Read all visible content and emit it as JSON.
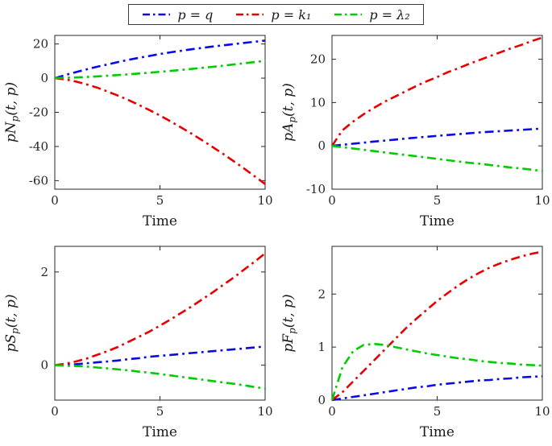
{
  "legend": {
    "items": [
      {
        "label": "p = q",
        "color": "#0a0ae6"
      },
      {
        "label": "p = k₁",
        "color": "#e60000"
      },
      {
        "label": "p = λ₂",
        "color": "#00cc00"
      }
    ]
  },
  "chart_data": [
    {
      "type": "line",
      "title": "",
      "xlabel": "Time",
      "ylabel": "pN_p(t, p)",
      "xlim": [
        0,
        10
      ],
      "ylim": [
        -65,
        25
      ],
      "xticks": [
        0,
        5,
        10
      ],
      "yticks": [
        20,
        0,
        -20,
        -40,
        -60
      ],
      "grid": false,
      "x": [
        0,
        0.5,
        1,
        1.5,
        2,
        2.5,
        3,
        3.5,
        4,
        4.5,
        5,
        5.5,
        6,
        6.5,
        7,
        7.5,
        8,
        8.5,
        9,
        9.5,
        10
      ],
      "series": [
        {
          "name": "p = q",
          "color": "#0a0ae6",
          "values": [
            0,
            1.8,
            3.5,
            5.1,
            6.6,
            8.0,
            9.4,
            10.7,
            11.9,
            13.0,
            14.1,
            15.1,
            16.0,
            16.9,
            17.7,
            18.5,
            19.2,
            19.9,
            20.6,
            21.3,
            22.0
          ]
        },
        {
          "name": "p = k₁",
          "color": "#e60000",
          "values": [
            0,
            -0.7,
            -2.0,
            -3.6,
            -5.5,
            -7.8,
            -10.2,
            -12.8,
            -15.7,
            -18.7,
            -21.9,
            -25.3,
            -28.8,
            -32.5,
            -36.3,
            -40.3,
            -44.3,
            -48.6,
            -52.9,
            -57.4,
            -62.0
          ]
        },
        {
          "name": "p = λ₂",
          "color": "#00cc00",
          "values": [
            0,
            0.2,
            0.4,
            0.7,
            1.0,
            1.4,
            1.8,
            2.2,
            2.7,
            3.2,
            3.7,
            4.2,
            4.8,
            5.4,
            6.0,
            6.6,
            7.3,
            8.0,
            8.7,
            9.4,
            10.1
          ]
        }
      ]
    },
    {
      "type": "line",
      "title": "",
      "xlabel": "Time",
      "ylabel": "pA_p(t, p)",
      "xlim": [
        0,
        10
      ],
      "ylim": [
        -10,
        25.5
      ],
      "xticks": [
        0,
        5,
        10
      ],
      "yticks": [
        20,
        10,
        0,
        -10
      ],
      "grid": false,
      "x": [
        0,
        0.5,
        1,
        1.5,
        2,
        2.5,
        3,
        3.5,
        4,
        4.5,
        5,
        5.5,
        6,
        6.5,
        7,
        7.5,
        8,
        8.5,
        9,
        9.5,
        10
      ],
      "series": [
        {
          "name": "p = q",
          "color": "#0a0ae6",
          "values": [
            0,
            0.25,
            0.5,
            0.75,
            1.0,
            1.2,
            1.45,
            1.7,
            1.9,
            2.1,
            2.3,
            2.5,
            2.7,
            2.9,
            3.1,
            3.25,
            3.4,
            3.55,
            3.7,
            3.85,
            4.0
          ]
        },
        {
          "name": "p = k₁",
          "color": "#e60000",
          "values": [
            0,
            3.6,
            5.6,
            7.3,
            8.8,
            10.2,
            11.4,
            12.6,
            13.8,
            14.9,
            15.9,
            17.0,
            17.9,
            18.9,
            19.8,
            20.7,
            21.6,
            22.5,
            23.3,
            24.2,
            25.0
          ]
        },
        {
          "name": "p = λ₂",
          "color": "#00cc00",
          "values": [
            0,
            -0.3,
            -0.6,
            -0.9,
            -1.2,
            -1.5,
            -1.8,
            -2.1,
            -2.4,
            -2.7,
            -3.0,
            -3.3,
            -3.6,
            -3.9,
            -4.1,
            -4.4,
            -4.7,
            -5.0,
            -5.2,
            -5.5,
            -5.8
          ]
        }
      ]
    },
    {
      "type": "line",
      "title": "",
      "xlabel": "Time",
      "ylabel": "pS_p(t, p)",
      "xlim": [
        0,
        10
      ],
      "ylim": [
        -0.75,
        2.55
      ],
      "xticks": [
        0,
        5,
        10
      ],
      "yticks": [
        2,
        0
      ],
      "grid": false,
      "x": [
        0,
        0.5,
        1,
        1.5,
        2,
        2.5,
        3,
        3.5,
        4,
        4.5,
        5,
        5.5,
        6,
        6.5,
        7,
        7.5,
        8,
        8.5,
        9,
        9.5,
        10
      ],
      "series": [
        {
          "name": "p = q",
          "color": "#0a0ae6",
          "values": [
            0,
            0.01,
            0.02,
            0.04,
            0.06,
            0.08,
            0.1,
            0.13,
            0.15,
            0.18,
            0.2,
            0.22,
            0.24,
            0.26,
            0.28,
            0.3,
            0.32,
            0.34,
            0.36,
            0.38,
            0.4
          ]
        },
        {
          "name": "p = k₁",
          "color": "#e60000",
          "values": [
            0,
            0.03,
            0.08,
            0.14,
            0.22,
            0.3,
            0.39,
            0.5,
            0.61,
            0.72,
            0.85,
            0.98,
            1.12,
            1.26,
            1.41,
            1.56,
            1.72,
            1.88,
            2.05,
            2.22,
            2.4
          ]
        },
        {
          "name": "p = λ₂",
          "color": "#00cc00",
          "values": [
            0,
            -0.01,
            -0.02,
            -0.03,
            -0.05,
            -0.07,
            -0.09,
            -0.11,
            -0.14,
            -0.16,
            -0.19,
            -0.22,
            -0.25,
            -0.28,
            -0.31,
            -0.34,
            -0.37,
            -0.4,
            -0.43,
            -0.47,
            -0.5
          ]
        }
      ]
    },
    {
      "type": "line",
      "title": "",
      "xlabel": "Time",
      "ylabel": "pF_p(t, p)",
      "xlim": [
        0,
        10
      ],
      "ylim": [
        0,
        2.9
      ],
      "xticks": [
        0,
        5,
        10
      ],
      "yticks": [
        2,
        1,
        0
      ],
      "grid": false,
      "x": [
        0,
        0.5,
        1,
        1.5,
        2,
        2.5,
        3,
        3.5,
        4,
        4.5,
        5,
        5.5,
        6,
        6.5,
        7,
        7.5,
        8,
        8.5,
        9,
        9.5,
        10
      ],
      "series": [
        {
          "name": "p = q",
          "color": "#0a0ae6",
          "values": [
            0,
            0.03,
            0.06,
            0.09,
            0.12,
            0.15,
            0.18,
            0.21,
            0.24,
            0.26,
            0.29,
            0.31,
            0.33,
            0.35,
            0.37,
            0.38,
            0.4,
            0.41,
            0.43,
            0.44,
            0.45
          ]
        },
        {
          "name": "p = k₁",
          "color": "#e60000",
          "values": [
            0,
            0.15,
            0.35,
            0.55,
            0.75,
            0.95,
            1.15,
            1.35,
            1.53,
            1.7,
            1.87,
            2.02,
            2.16,
            2.29,
            2.4,
            2.5,
            2.58,
            2.65,
            2.71,
            2.76,
            2.8
          ]
        },
        {
          "name": "p = λ₂",
          "color": "#00cc00",
          "values": [
            0,
            0.62,
            0.92,
            1.04,
            1.06,
            1.04,
            1.0,
            0.96,
            0.92,
            0.88,
            0.85,
            0.82,
            0.79,
            0.77,
            0.74,
            0.72,
            0.7,
            0.69,
            0.67,
            0.66,
            0.65
          ]
        }
      ]
    }
  ]
}
